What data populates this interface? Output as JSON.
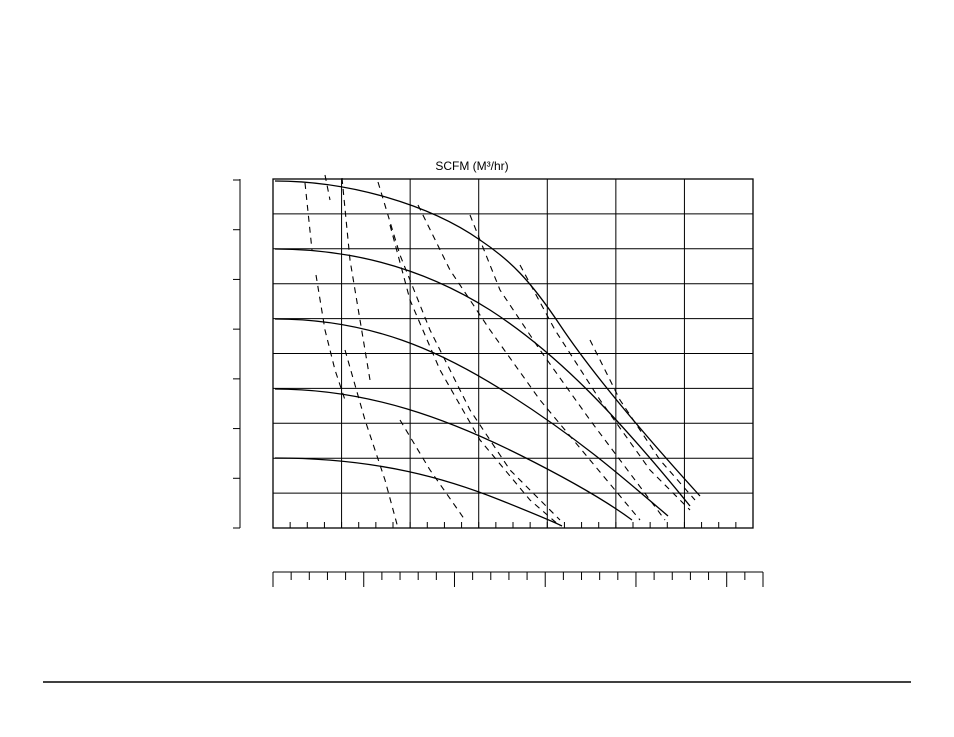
{
  "figure": {
    "title": "SCFM (M³/hr)"
  }
}
